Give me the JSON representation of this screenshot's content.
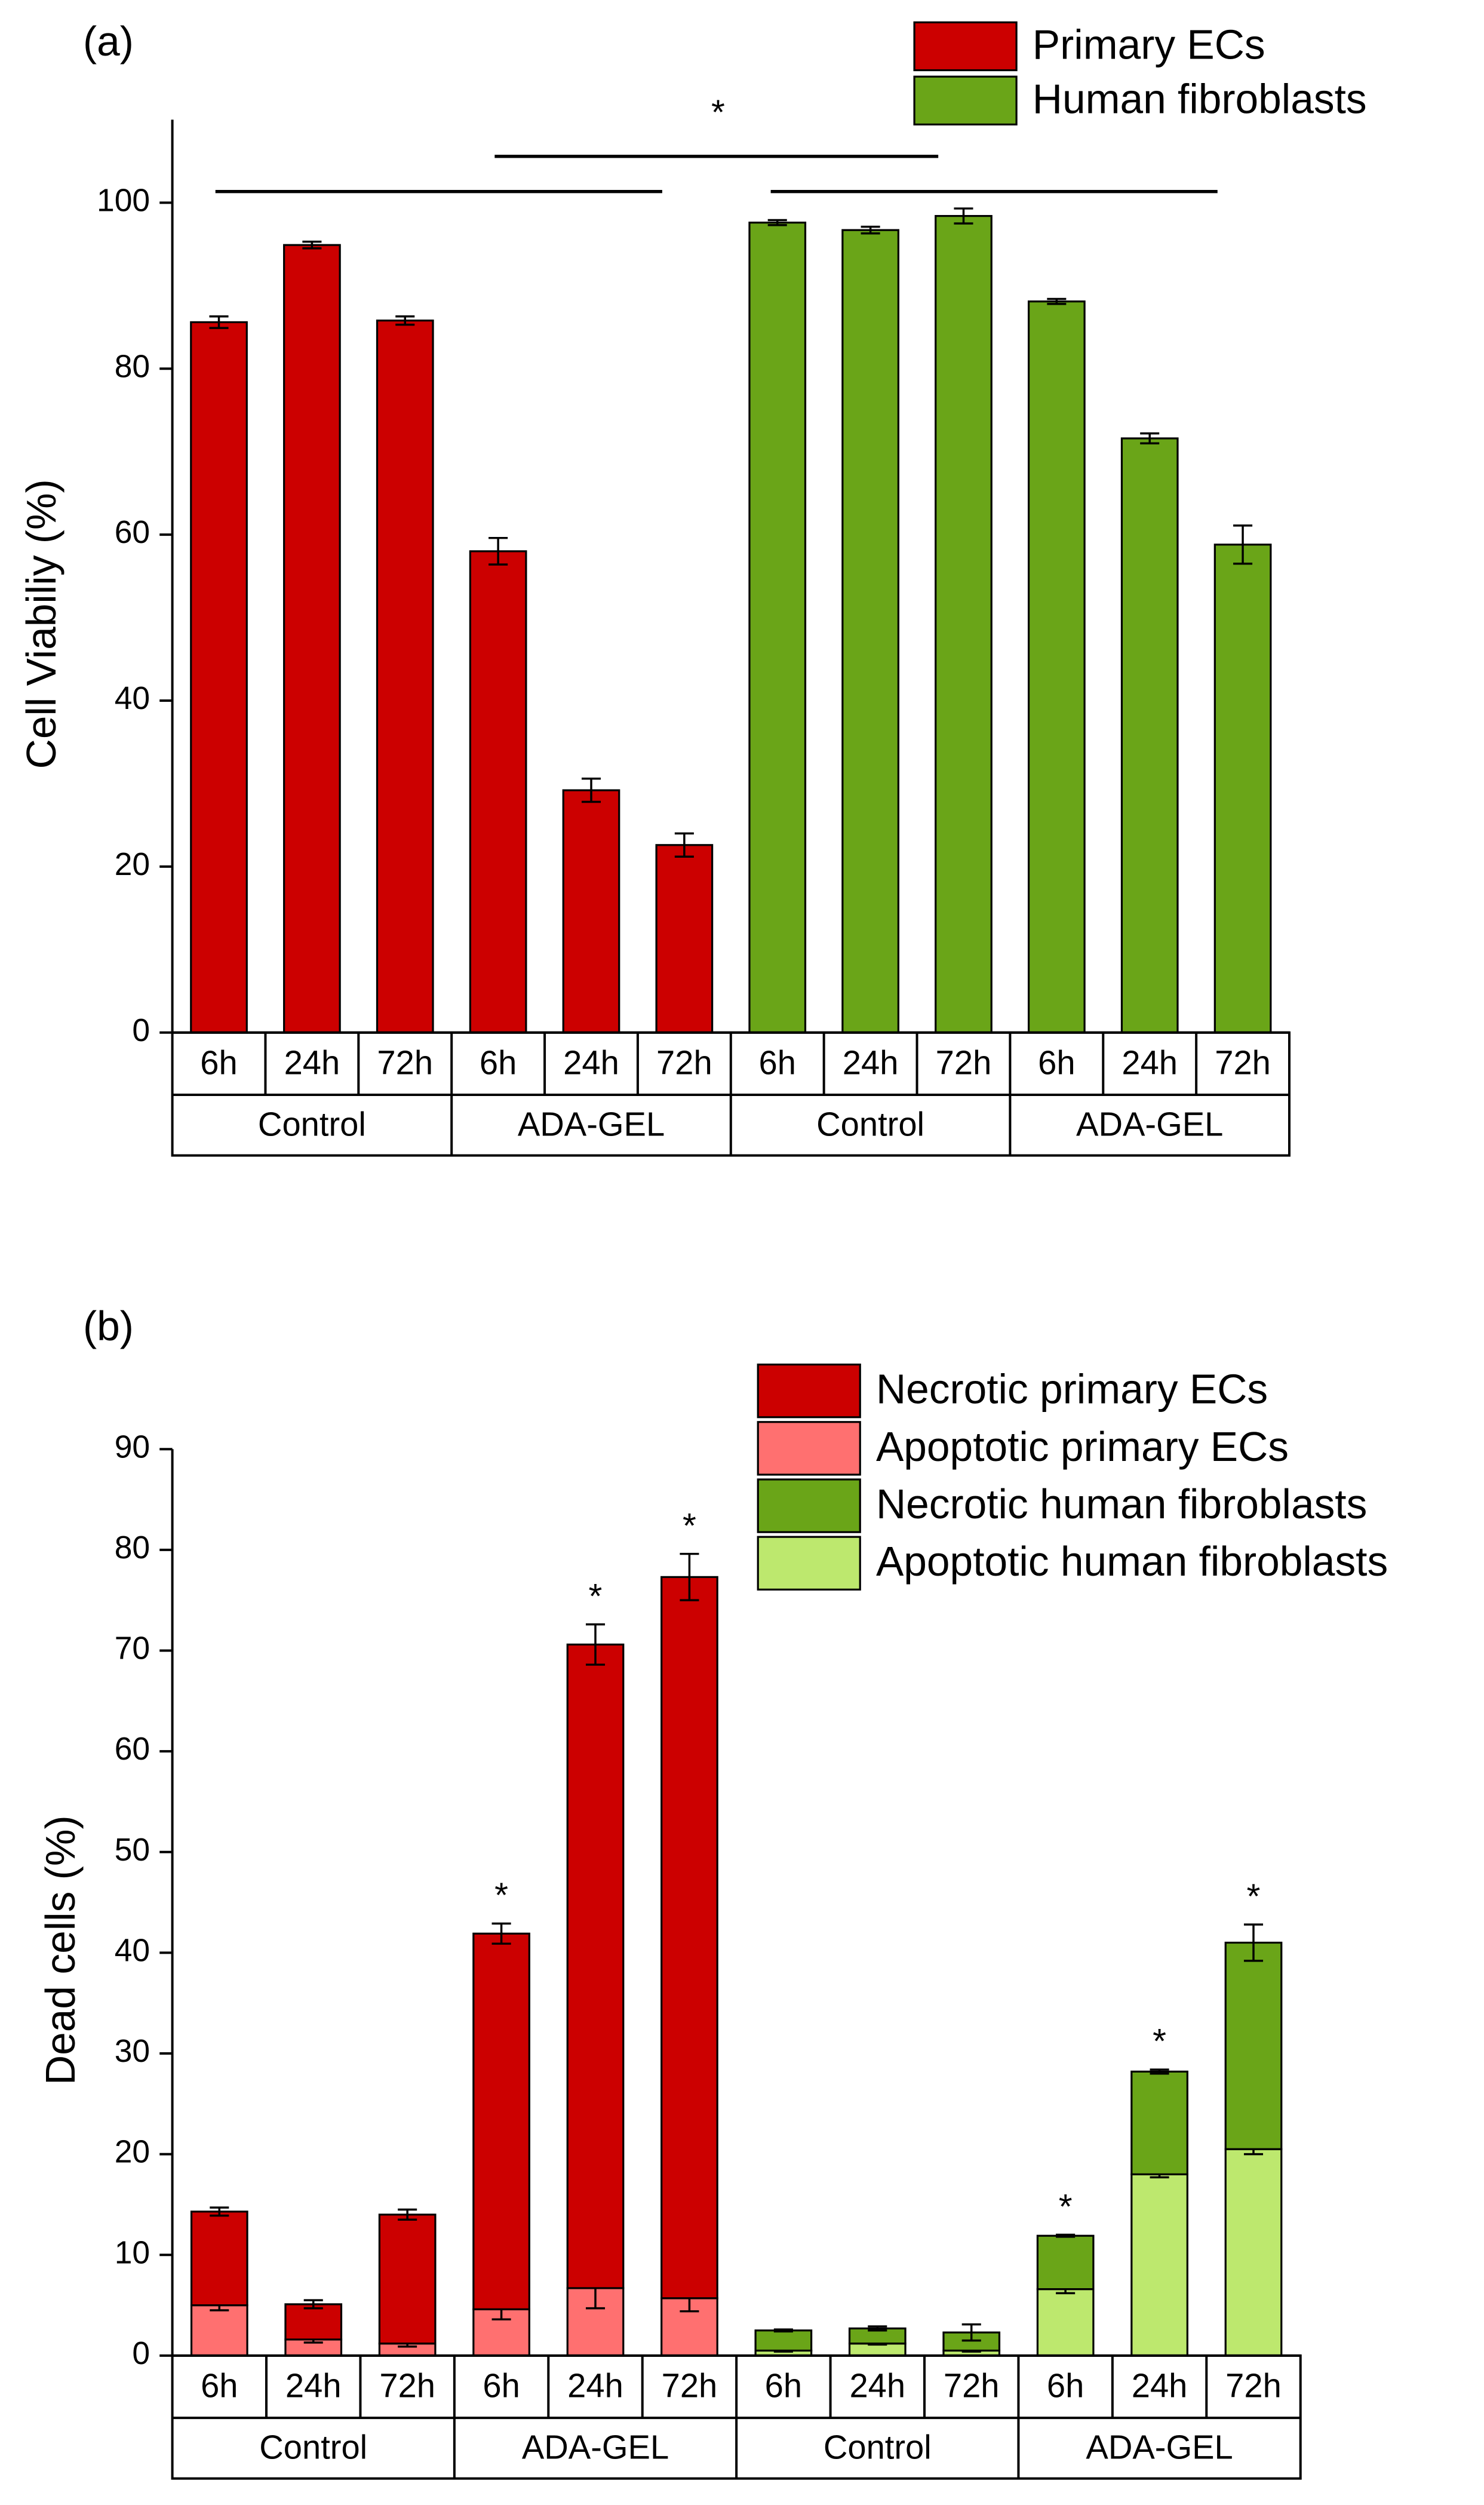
{
  "chart_data": [
    {
      "type": "bar",
      "panel": "(a)",
      "ylabel": "Cell Viabiliy (%)",
      "annotation": "*",
      "categories": [
        "6h",
        "24h",
        "72h",
        "6h",
        "24h",
        "72h",
        "6h",
        "24h",
        "72h",
        "6h",
        "24h",
        "72h"
      ],
      "groups": [
        "Control",
        "ADA-GEL",
        "Control",
        "ADA-GEL"
      ],
      "ylim": [
        0,
        110
      ],
      "yticks": [
        0,
        20,
        40,
        60,
        80,
        100
      ],
      "series": [
        {
          "name": "Primary ECs",
          "color": "#cc0000",
          "values": [
            85.6,
            94.9,
            85.8,
            58.0,
            29.2,
            22.6,
            null,
            null,
            null,
            null,
            null,
            null
          ],
          "errors": [
            0.7,
            0.4,
            0.5,
            1.6,
            1.4,
            1.4,
            null,
            null,
            null,
            null,
            null,
            null
          ]
        },
        {
          "name": "Human fibroblasts",
          "color": "#6aa518",
          "values": [
            null,
            null,
            null,
            null,
            null,
            null,
            97.6,
            96.7,
            98.4,
            88.1,
            71.6,
            58.8
          ],
          "errors": [
            null,
            null,
            null,
            null,
            null,
            null,
            0.3,
            0.4,
            0.9,
            0.3,
            0.6,
            2.3
          ]
        }
      ]
    },
    {
      "type": "stacked_bar",
      "panel": "(b)",
      "ylabel": "Dead cells (%)",
      "categories": [
        "6h",
        "24h",
        "72h",
        "6h",
        "24h",
        "72h",
        "6h",
        "24h",
        "72h",
        "6h",
        "24h",
        "72h"
      ],
      "groups": [
        "Control",
        "ADA-GEL",
        "Control",
        "ADA-GEL"
      ],
      "markers": [
        null,
        null,
        null,
        "*",
        "*",
        "*",
        null,
        null,
        null,
        "*",
        "*",
        "*"
      ],
      "ylim": [
        0,
        90
      ],
      "yticks": [
        0,
        10,
        20,
        30,
        40,
        50,
        60,
        70,
        80,
        90
      ],
      "series": [
        {
          "name": "Necrotic primary ECs",
          "color": "#cc0000",
          "values": [
            9.3,
            3.5,
            12.8,
            37.3,
            63.9,
            71.6,
            null,
            null,
            null,
            null,
            null,
            null
          ],
          "errors": [
            0.4,
            0.4,
            0.5,
            1.0,
            2.0,
            2.3,
            null,
            null,
            null,
            null,
            null,
            null
          ]
        },
        {
          "name": "Apoptotic primary ECs",
          "color": "#ff7070",
          "values": [
            5.0,
            1.6,
            1.2,
            4.6,
            6.7,
            5.7,
            null,
            null,
            null,
            null,
            null,
            null
          ],
          "errors": [
            0.5,
            0.3,
            0.3,
            1.0,
            2.0,
            1.3,
            null,
            null,
            null,
            null,
            null,
            null
          ]
        },
        {
          "name": "Necrotic human fibroblasts",
          "color": "#6aa518",
          "values": [
            null,
            null,
            null,
            null,
            null,
            null,
            2.0,
            1.5,
            1.8,
            5.3,
            10.2,
            20.5
          ],
          "errors": [
            null,
            null,
            null,
            null,
            null,
            null,
            0.1,
            0.2,
            0.8,
            0.1,
            0.2,
            1.8
          ]
        },
        {
          "name": "Apoptotic human fibroblasts",
          "color": "#bde86e",
          "values": [
            null,
            null,
            null,
            null,
            null,
            null,
            0.5,
            1.2,
            0.5,
            6.6,
            18.0,
            20.5
          ],
          "errors": [
            null,
            null,
            null,
            null,
            null,
            null,
            0.1,
            0.1,
            0.1,
            0.4,
            0.3,
            0.5
          ]
        }
      ]
    }
  ]
}
